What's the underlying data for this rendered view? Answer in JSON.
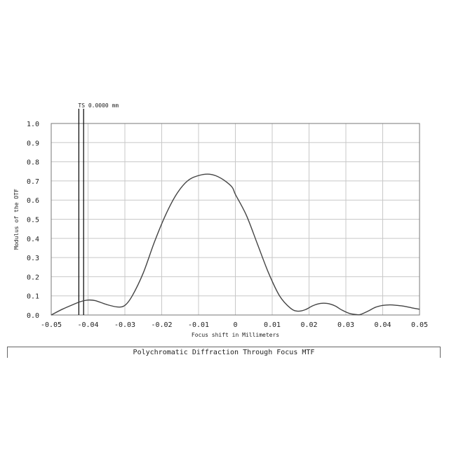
{
  "chart_data": {
    "type": "line",
    "xlabel": "Focus shift in Millimeters",
    "ylabel": "Modulus of the OTF",
    "xlim": [
      -0.05,
      0.05
    ],
    "ylim": [
      0,
      1
    ],
    "x_ticks": [
      -0.05,
      -0.04,
      -0.03,
      -0.02,
      -0.01,
      0,
      0.01,
      0.02,
      0.03,
      0.04,
      0.05
    ],
    "x_tick_labels": [
      "-0.05",
      "-0.04",
      "-0.03",
      "-0.02",
      "-0.01",
      "0",
      "0.01",
      "0.02",
      "0.03",
      "0.04",
      "0.05"
    ],
    "y_ticks": [
      0,
      0.1,
      0.2,
      0.3,
      0.4,
      0.5,
      0.6,
      0.7,
      0.8,
      0.9,
      1.0
    ],
    "y_tick_labels": [
      "0.0",
      "0.1",
      "0.2",
      "0.3",
      "0.4",
      "0.5",
      "0.6",
      "0.7",
      "0.8",
      "0.9",
      "1.0"
    ],
    "grid": true,
    "markers": [
      {
        "label": "TS 0.0000 mm",
        "x": -0.0425
      },
      {
        "x": -0.0412
      }
    ],
    "series": [
      {
        "color": "#444444",
        "x": [
          -0.05,
          -0.047,
          -0.044,
          -0.042,
          -0.04,
          -0.038,
          -0.035,
          -0.032,
          -0.03,
          -0.028,
          -0.025,
          -0.022,
          -0.019,
          -0.016,
          -0.013,
          -0.01,
          -0.007,
          -0.004,
          -0.001,
          0.0,
          0.003,
          0.006,
          0.009,
          0.012,
          0.015,
          0.017,
          0.019,
          0.021,
          0.023,
          0.025,
          0.027,
          0.029,
          0.031,
          0.033,
          0.034,
          0.036,
          0.038,
          0.04,
          0.042,
          0.044,
          0.046,
          0.048,
          0.05
        ],
        "y": [
          0.0,
          0.03,
          0.055,
          0.07,
          0.078,
          0.075,
          0.055,
          0.042,
          0.05,
          0.1,
          0.22,
          0.38,
          0.52,
          0.63,
          0.7,
          0.728,
          0.735,
          0.715,
          0.67,
          0.63,
          0.52,
          0.37,
          0.22,
          0.1,
          0.035,
          0.02,
          0.028,
          0.048,
          0.06,
          0.06,
          0.048,
          0.025,
          0.008,
          0.002,
          0.003,
          0.02,
          0.04,
          0.05,
          0.053,
          0.05,
          0.045,
          0.037,
          0.03
        ]
      }
    ]
  },
  "footer": {
    "title": "Polychromatic Diffraction Through Focus MTF"
  }
}
